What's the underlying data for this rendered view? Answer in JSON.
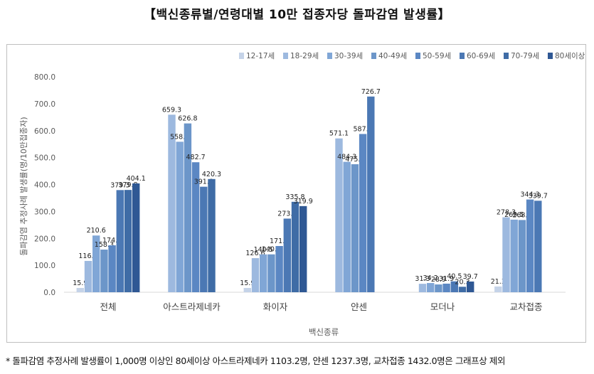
{
  "title": "【백신종류별/연령대별 10만 접종자당 돌파감염 발생률】",
  "footnote": "* 돌파감염 추정사례 발생률이 1,000명 이상인 80세이상 아스트라제네카 1103.2명, 얀센 1237.3명, 교차접종 1432.0명은 그래프상 제외",
  "chart_data": {
    "type": "bar",
    "title": "백신종류별/연령대별 10만 접종자당 돌파감염 발생률",
    "xlabel": "백신종류",
    "ylabel": "돌파감염 추정사례 발생률(명/10만접종자)",
    "ylim": [
      0,
      800
    ],
    "yticks": [
      "0.0",
      "100.0",
      "200.0",
      "300.0",
      "400.0",
      "500.0",
      "600.0",
      "700.0",
      "800.0"
    ],
    "legend_position": "top-right",
    "categories": [
      "전체",
      "아스트라제네카",
      "화이자",
      "얀센",
      "모더나",
      "교차접종"
    ],
    "series": [
      {
        "name": "12-17세",
        "color": "#c5d3e8",
        "values": [
          15.9,
          null,
          15.9,
          null,
          null,
          21.3
        ],
        "labels": [
          "15.9",
          "",
          "15.9",
          "",
          "",
          "21.3"
        ]
      },
      {
        "name": "18-29세",
        "color": "#9db9df",
        "values": [
          116.3,
          659.3,
          126.6,
          571.1,
          31.3,
          278.3
        ],
        "labels": [
          "116.3",
          "659.3",
          "126.6",
          "571.1",
          "31.3",
          "278.3"
        ]
      },
      {
        "name": "30-39세",
        "color": "#80a6d6",
        "values": [
          210.6,
          558.8,
          140.5,
          484.3,
          34.2,
          269.5
        ],
        "labels": [
          "210.6",
          "558.8",
          "140.5",
          "484.3",
          "34.2",
          "269.5"
        ]
      },
      {
        "name": "40-49세",
        "color": "#6c96c9",
        "values": [
          158.3,
          626.8,
          140.6,
          475.4,
          28.9,
          268.2
        ],
        "labels": [
          "158.3",
          "626.8",
          "140.6",
          "475.4",
          "28.9",
          "268.2"
        ]
      },
      {
        "name": "50-59세",
        "color": "#5b87c3",
        "values": [
          174.3,
          482.7,
          171.6,
          587.6,
          31.9,
          344.3
        ],
        "labels": [
          "174.3",
          "482.7",
          "171.6",
          "587.6",
          "31.9",
          "344.3"
        ]
      },
      {
        "name": "60-69세",
        "color": "#4b78b4",
        "values": [
          379.3,
          391.8,
          273.4,
          726.7,
          40.5,
          339.7
        ],
        "labels": [
          "379.3",
          "391.8",
          "273.4",
          "726.7",
          "40.5",
          "339.7"
        ]
      },
      {
        "name": "70-79세",
        "color": "#3f6ca6",
        "values": [
          379.8,
          420.3,
          335.8,
          null,
          20.3,
          null
        ],
        "labels": [
          "379.8",
          "420.3",
          "335.8",
          "",
          "20.3",
          ""
        ]
      },
      {
        "name": "80세이상",
        "color": "#2f5894",
        "values": [
          404.1,
          null,
          319.9,
          null,
          39.7,
          null
        ],
        "labels": [
          "404.1",
          "",
          "319.9",
          "",
          "39.7",
          ""
        ]
      }
    ]
  }
}
